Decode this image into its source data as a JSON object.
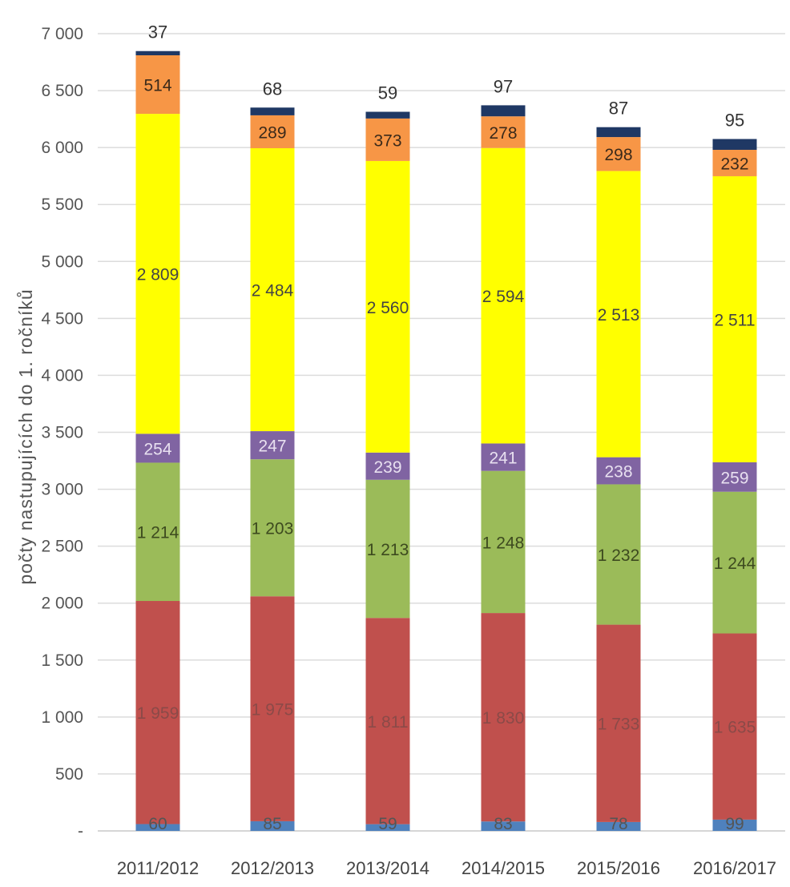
{
  "chart_data": {
    "type": "bar",
    "stacked": true,
    "categories": [
      "2011/2012",
      "2012/2013",
      "2013/2014",
      "2014/2015",
      "2015/2016",
      "2016/2017"
    ],
    "ylabel": "počty nastupujících do 1. ročníků",
    "xlabel": "",
    "title": "",
    "ylim": [
      0,
      7000
    ],
    "yticks": [
      {
        "value": 0,
        "label": "-"
      },
      {
        "value": 500,
        "label": "500"
      },
      {
        "value": 1000,
        "label": "1 000"
      },
      {
        "value": 1500,
        "label": "1 500"
      },
      {
        "value": 2000,
        "label": "2 000"
      },
      {
        "value": 2500,
        "label": "2 500"
      },
      {
        "value": 3000,
        "label": "3 000"
      },
      {
        "value": 3500,
        "label": "3 500"
      },
      {
        "value": 4000,
        "label": "4 000"
      },
      {
        "value": 4500,
        "label": "4 500"
      },
      {
        "value": 5000,
        "label": "5 000"
      },
      {
        "value": 5500,
        "label": "5 500"
      },
      {
        "value": 6000,
        "label": "6 000"
      },
      {
        "value": 6500,
        "label": "6 500"
      },
      {
        "value": 7000,
        "label": "7 000"
      }
    ],
    "grid": true,
    "legend": "none",
    "series": [
      {
        "color": "#4f81bd",
        "label_color": "#555555",
        "label_position": "inside",
        "values": [
          60,
          85,
          59,
          83,
          78,
          99
        ],
        "labels": [
          "60",
          "85",
          "59",
          "83",
          "78",
          "99"
        ]
      },
      {
        "color": "#c0504d",
        "label_color": "#8b4a48",
        "label_position": "inside",
        "values": [
          1959,
          1975,
          1811,
          1830,
          1733,
          1635
        ],
        "labels": [
          "1 959",
          "1 975",
          "1 811",
          "1 830",
          "1 733",
          "1 635"
        ]
      },
      {
        "color": "#9bbb59",
        "label_color": "#3d4a1f",
        "label_position": "inside",
        "values": [
          1214,
          1203,
          1213,
          1248,
          1232,
          1244
        ],
        "labels": [
          "1 214",
          "1 203",
          "1 213",
          "1 248",
          "1 232",
          "1 244"
        ]
      },
      {
        "color": "#8064a2",
        "label_color": "#e8e0f0",
        "label_position": "inside",
        "values": [
          254,
          247,
          239,
          241,
          238,
          259
        ],
        "labels": [
          "254",
          "247",
          "239",
          "241",
          "238",
          "259"
        ]
      },
      {
        "color": "#ffff00",
        "label_color": "#444444",
        "label_position": "inside",
        "values": [
          2809,
          2484,
          2560,
          2594,
          2513,
          2511
        ],
        "labels": [
          "2 809",
          "2 484",
          "2 560",
          "2 594",
          "2 513",
          "2 511"
        ]
      },
      {
        "color": "#f79646",
        "label_color": "#3b2a1a",
        "label_position": "inside",
        "values": [
          514,
          289,
          373,
          278,
          298,
          232
        ],
        "labels": [
          "514",
          "289",
          "373",
          "278",
          "298",
          "232"
        ]
      },
      {
        "color": "#1f3864",
        "label_color": "#333333",
        "label_position": "above",
        "values": [
          37,
          68,
          59,
          97,
          87,
          95
        ],
        "labels": [
          "37",
          "68",
          "59",
          "97",
          "87",
          "95"
        ]
      }
    ]
  }
}
